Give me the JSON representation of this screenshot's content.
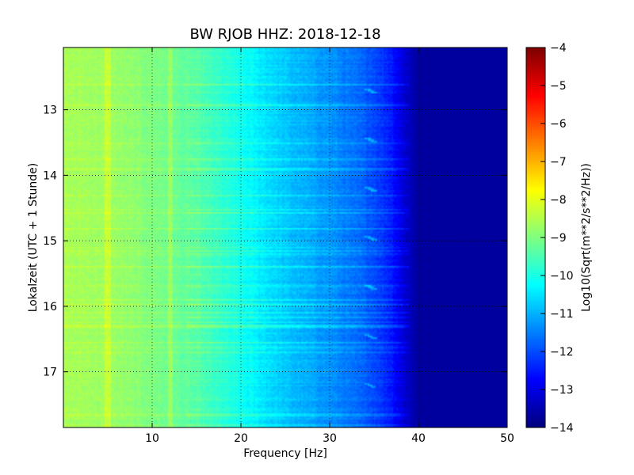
{
  "chart_data": {
    "type": "heatmap",
    "title": "BW RJOB HHZ: 2018-12-18",
    "xlabel": "Frequency [Hz]",
    "ylabel": "Lokalzeit (UTC + 1 Stunde)",
    "xlim": [
      0,
      50
    ],
    "ylim": [
      12.05,
      17.85
    ],
    "x_ticks": [
      {
        "value": 10,
        "label": "10"
      },
      {
        "value": 20,
        "label": "20"
      },
      {
        "value": 30,
        "label": "30"
      },
      {
        "value": 40,
        "label": "40"
      },
      {
        "value": 50,
        "label": "50"
      }
    ],
    "y_ticks": [
      {
        "value": 13,
        "label": "13"
      },
      {
        "value": 14,
        "label": "14"
      },
      {
        "value": 15,
        "label": "15"
      },
      {
        "value": 16,
        "label": "16"
      },
      {
        "value": 17,
        "label": "17"
      }
    ],
    "y_inverted": true,
    "grid": true,
    "colormap": "jet",
    "colorbar": {
      "label": "Log10(Sqrt(m**2/s**2/Hz))",
      "min": -14,
      "max": -4,
      "ticks": [
        {
          "value": -4,
          "label": "−4"
        },
        {
          "value": -5,
          "label": "−5"
        },
        {
          "value": -6,
          "label": "−6"
        },
        {
          "value": -7,
          "label": "−7"
        },
        {
          "value": -8,
          "label": "−8"
        },
        {
          "value": -9,
          "label": "−9"
        },
        {
          "value": -10,
          "label": "−10"
        },
        {
          "value": -11,
          "label": "−11"
        },
        {
          "value": -12,
          "label": "−12"
        },
        {
          "value": -13,
          "label": "−13"
        },
        {
          "value": -14,
          "label": "−14"
        }
      ]
    },
    "spectral_profile": {
      "frequency_hz": [
        0,
        5,
        10,
        15,
        20,
        25,
        30,
        33,
        35,
        37,
        38.5,
        40,
        45,
        50
      ],
      "level": [
        -8.6,
        -8.7,
        -9.0,
        -9.4,
        -10.1,
        -10.8,
        -11.3,
        -11.7,
        -12.0,
        -12.5,
        -13.2,
        -13.7,
        -13.7,
        -13.7
      ]
    },
    "features": [
      {
        "frequency_hz": 5.0,
        "description": "narrow vertical band"
      },
      {
        "frequency_hz": 12.0,
        "description": "narrow vertical band"
      },
      {
        "frequency_hz": 34.5,
        "description": "recurring short wavelet pattern"
      }
    ]
  }
}
